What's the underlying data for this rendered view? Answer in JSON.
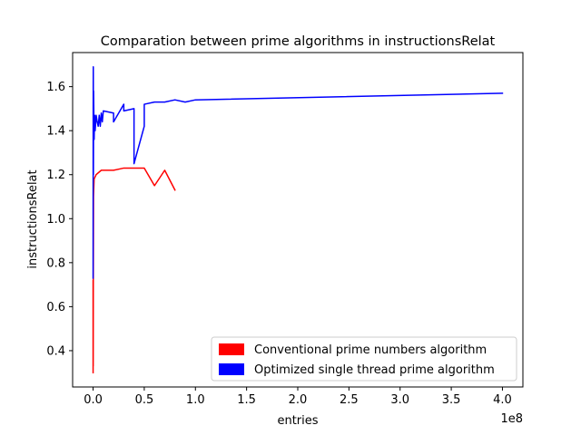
{
  "chart_data": {
    "type": "line",
    "title": "Comparation between prime algorithms in instructionsRelat",
    "xlabel": "entries",
    "ylabel": "instructionsRelat",
    "x_offset_label": "1e8",
    "xlim": [
      -2.0,
      4.2
    ],
    "ylim": [
      0.235,
      1.755
    ],
    "x_ticks": [
      0.0,
      0.5,
      1.0,
      1.5,
      2.0,
      2.5,
      3.0,
      3.5,
      4.0
    ],
    "x_tick_labels": [
      "0.0",
      "0.5",
      "1.0",
      "1.5",
      "2.0",
      "2.5",
      "3.0",
      "3.5",
      "4.0"
    ],
    "y_ticks": [
      0.4,
      0.6,
      0.8,
      1.0,
      1.2,
      1.4,
      1.6
    ],
    "y_tick_labels": [
      "0.4",
      "0.6",
      "0.8",
      "1.0",
      "1.2",
      "1.4",
      "1.6"
    ],
    "grid": false,
    "legend_position": "lower-right",
    "series": [
      {
        "name": "Conventional prime numbers algorithm",
        "color": "#ff0000",
        "points": [
          [
            0.0,
            0.3
          ],
          [
            0.0,
            0.72
          ],
          [
            0.001,
            0.33
          ],
          [
            0.002,
            0.7
          ],
          [
            0.004,
            1.1
          ],
          [
            0.01,
            1.18
          ],
          [
            0.03,
            1.2
          ],
          [
            0.08,
            1.22
          ],
          [
            0.2,
            1.22
          ],
          [
            0.3,
            1.23
          ],
          [
            0.5,
            1.23
          ],
          [
            0.6,
            1.15
          ],
          [
            0.7,
            1.22
          ],
          [
            0.8,
            1.13
          ]
        ]
      },
      {
        "name": "Optimized single thread prime algorithm",
        "color": "#0000ff",
        "points": [
          [
            0.0,
            0.73
          ],
          [
            0.001,
            1.5
          ],
          [
            0.002,
            1.69
          ],
          [
            0.003,
            1.2
          ],
          [
            0.005,
            1.58
          ],
          [
            0.01,
            1.36
          ],
          [
            0.015,
            1.47
          ],
          [
            0.02,
            1.4
          ],
          [
            0.03,
            1.47
          ],
          [
            0.04,
            1.44
          ],
          [
            0.05,
            1.42
          ],
          [
            0.06,
            1.47
          ],
          [
            0.07,
            1.42
          ],
          [
            0.08,
            1.48
          ],
          [
            0.09,
            1.44
          ],
          [
            0.1,
            1.49
          ],
          [
            0.2,
            1.48
          ],
          [
            0.2,
            1.44
          ],
          [
            0.3,
            1.52
          ],
          [
            0.3,
            1.49
          ],
          [
            0.4,
            1.5
          ],
          [
            0.4,
            1.25
          ],
          [
            0.5,
            1.42
          ],
          [
            0.5,
            1.52
          ],
          [
            0.6,
            1.53
          ],
          [
            0.7,
            1.53
          ],
          [
            0.8,
            1.54
          ],
          [
            0.9,
            1.53
          ],
          [
            1.0,
            1.54
          ],
          [
            4.0,
            1.57
          ]
        ]
      }
    ]
  }
}
